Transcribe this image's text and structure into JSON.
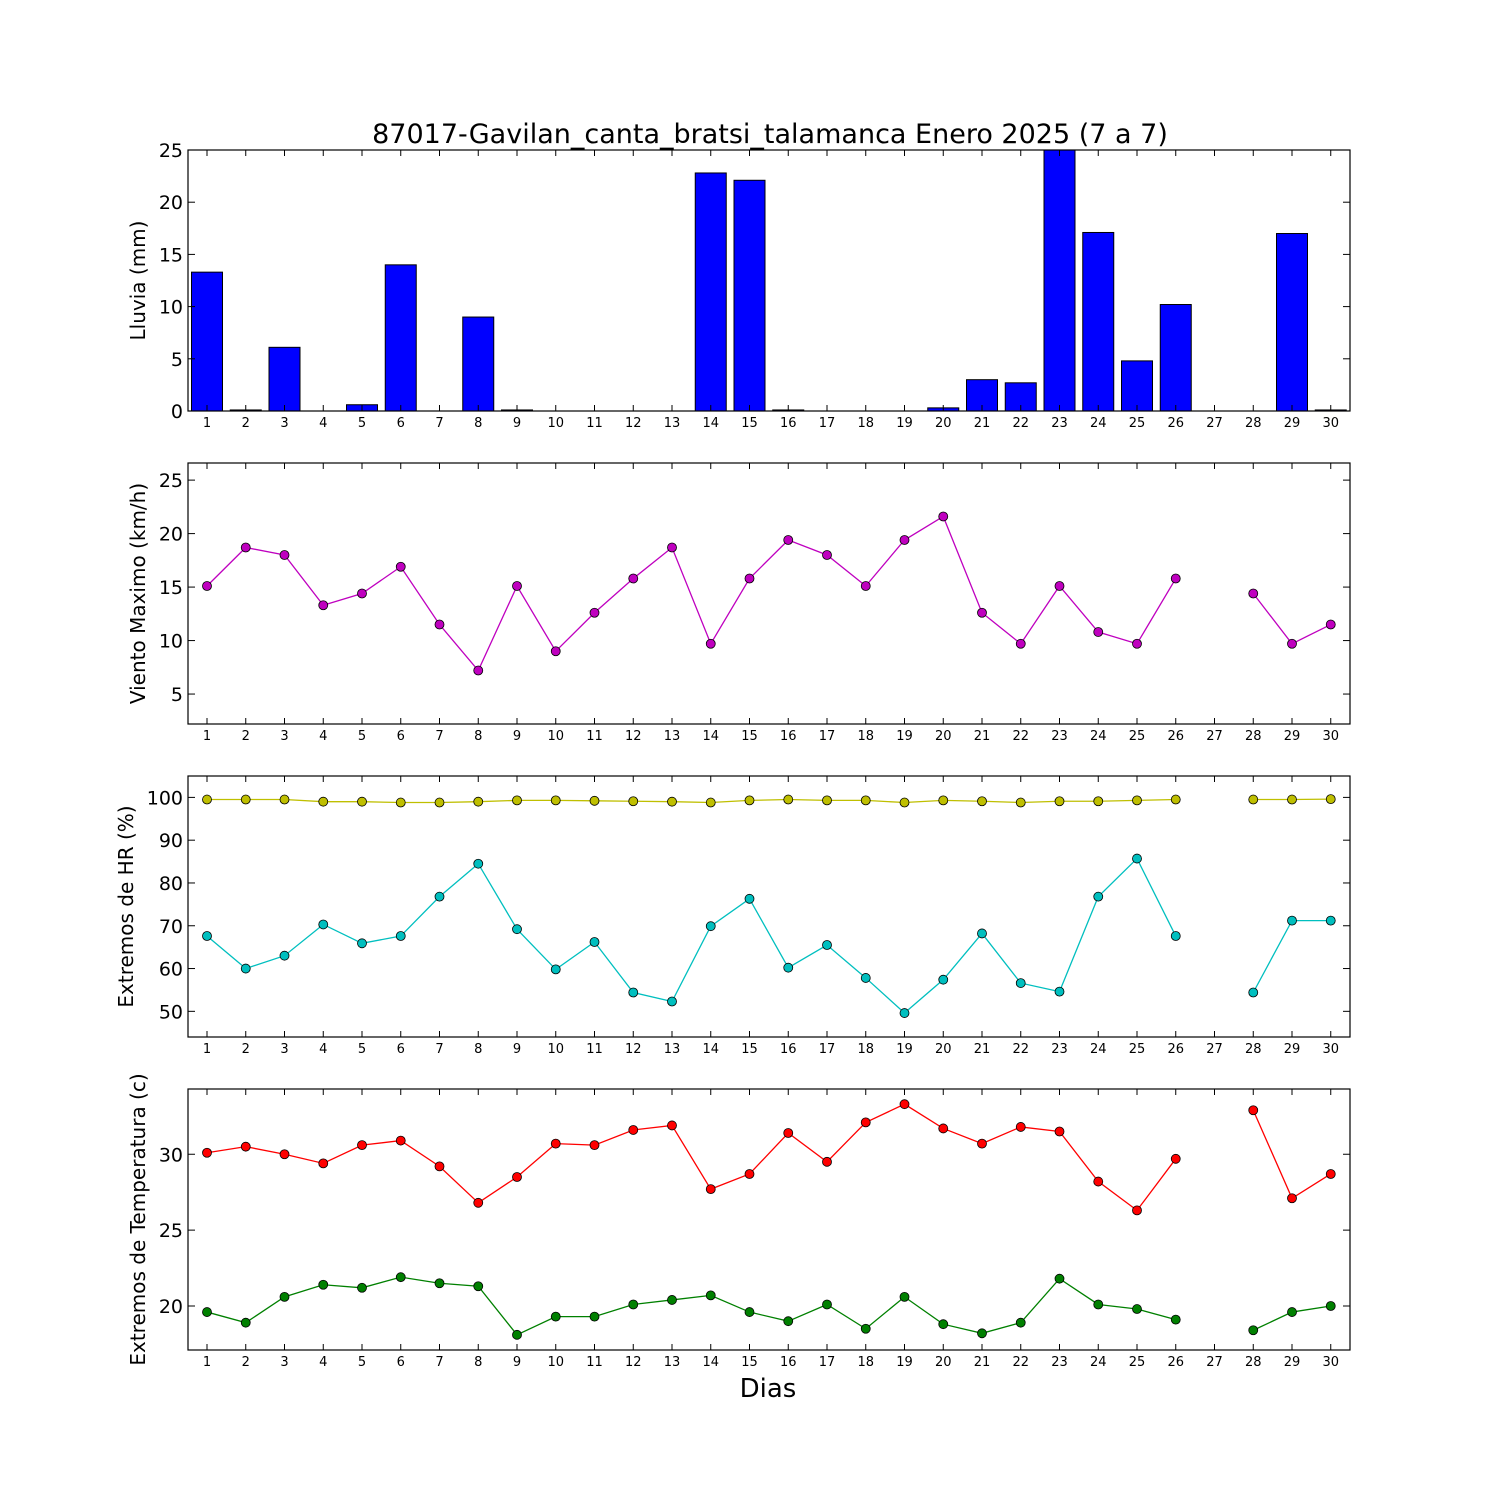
{
  "title": "87017-Gavilan_canta_bratsi_talamanca Enero 2025  (7 a 7)",
  "xlabel": "Dias",
  "colors": {
    "rain": "#0000ff",
    "wind": "#bf00bf",
    "hr_max": "#bfbf00",
    "hr_min": "#00bfbf",
    "temp_max": "#ff0000",
    "temp_min": "#008000"
  },
  "chart_data": [
    {
      "id": "rain",
      "type": "bar",
      "ylabel": "Lluvia (mm)",
      "ylim": [
        0,
        25
      ],
      "yticks": [
        0,
        5,
        10,
        15,
        20,
        25
      ],
      "categories": [
        "1",
        "2",
        "3",
        "4",
        "5",
        "6",
        "7",
        "8",
        "9",
        "10",
        "11",
        "12",
        "13",
        "14",
        "15",
        "16",
        "17",
        "18",
        "19",
        "20",
        "21",
        "22",
        "23",
        "24",
        "25",
        "26",
        "27",
        "28",
        "29",
        "30"
      ],
      "series": [
        {
          "color_key": "rain",
          "values": [
            13.3,
            0.1,
            6.1,
            0,
            0.6,
            14.0,
            0,
            9.0,
            0.1,
            0,
            0,
            0,
            0,
            22.8,
            22.1,
            0.1,
            0,
            0,
            0,
            0.3,
            3.0,
            2.7,
            25.0,
            17.1,
            4.8,
            10.2,
            0,
            0,
            17.0,
            0.1
          ]
        }
      ]
    },
    {
      "id": "wind",
      "type": "line",
      "ylabel": "Viento Maximo (km/h)",
      "ylim": [
        2.2,
        26.6
      ],
      "yticks": [
        5,
        10,
        15,
        20,
        25
      ],
      "categories": [
        "1",
        "2",
        "3",
        "4",
        "5",
        "6",
        "7",
        "8",
        "9",
        "10",
        "11",
        "12",
        "13",
        "14",
        "15",
        "16",
        "17",
        "18",
        "19",
        "20",
        "21",
        "22",
        "23",
        "24",
        "25",
        "26",
        "27",
        "28",
        "29",
        "30"
      ],
      "series": [
        {
          "color_key": "wind",
          "values": [
            15.1,
            18.7,
            18.0,
            13.3,
            14.4,
            16.9,
            11.5,
            7.2,
            15.1,
            9.0,
            12.6,
            15.8,
            18.7,
            9.7,
            15.8,
            19.4,
            18.0,
            15.1,
            19.4,
            21.6,
            12.6,
            9.7,
            15.1,
            10.8,
            9.7,
            15.8,
            null,
            14.4,
            9.7,
            11.5
          ]
        }
      ]
    },
    {
      "id": "hr",
      "type": "line",
      "ylabel": "Extremos de HR (%)",
      "ylim": [
        44,
        105
      ],
      "yticks": [
        50,
        60,
        70,
        80,
        90,
        100
      ],
      "categories": [
        "1",
        "2",
        "3",
        "4",
        "5",
        "6",
        "7",
        "8",
        "9",
        "10",
        "11",
        "12",
        "13",
        "14",
        "15",
        "16",
        "17",
        "18",
        "19",
        "20",
        "21",
        "22",
        "23",
        "24",
        "25",
        "26",
        "27",
        "28",
        "29",
        "30"
      ],
      "series": [
        {
          "color_key": "hr_max",
          "values": [
            99.5,
            99.5,
            99.5,
            99.0,
            99.0,
            98.8,
            98.8,
            99.0,
            99.3,
            99.3,
            99.2,
            99.1,
            99.0,
            98.8,
            99.3,
            99.5,
            99.3,
            99.3,
            98.8,
            99.3,
            99.1,
            98.8,
            99.1,
            99.1,
            99.3,
            99.5,
            null,
            99.5,
            99.5,
            99.6
          ]
        },
        {
          "color_key": "hr_min",
          "values": [
            67.6,
            60.0,
            63.0,
            70.3,
            65.9,
            67.6,
            76.8,
            84.5,
            69.2,
            59.8,
            66.2,
            54.4,
            52.3,
            69.9,
            76.3,
            60.2,
            65.5,
            57.8,
            49.6,
            57.4,
            68.2,
            56.6,
            54.6,
            76.8,
            85.7,
            67.6,
            null,
            54.4,
            71.2,
            71.2
          ]
        }
      ]
    },
    {
      "id": "temp",
      "type": "line",
      "ylabel": "Extremos de Temperatura (c)",
      "ylim": [
        17.1,
        34.3
      ],
      "yticks": [
        20,
        25,
        30
      ],
      "categories": [
        "1",
        "2",
        "3",
        "4",
        "5",
        "6",
        "7",
        "8",
        "9",
        "10",
        "11",
        "12",
        "13",
        "14",
        "15",
        "16",
        "17",
        "18",
        "19",
        "20",
        "21",
        "22",
        "23",
        "24",
        "25",
        "26",
        "27",
        "28",
        "29",
        "30"
      ],
      "series": [
        {
          "color_key": "temp_max",
          "values": [
            30.1,
            30.5,
            30.0,
            29.4,
            30.6,
            30.9,
            29.2,
            26.8,
            28.5,
            30.7,
            30.6,
            31.6,
            31.9,
            27.7,
            28.7,
            31.4,
            29.5,
            32.1,
            33.3,
            31.7,
            30.7,
            31.8,
            31.5,
            28.2,
            26.3,
            29.7,
            null,
            32.9,
            27.1,
            28.7
          ]
        },
        {
          "color_key": "temp_min",
          "values": [
            19.6,
            18.9,
            20.6,
            21.4,
            21.2,
            21.9,
            21.5,
            21.3,
            18.1,
            19.3,
            19.3,
            20.1,
            20.4,
            20.7,
            19.6,
            19.0,
            20.1,
            18.5,
            20.6,
            18.8,
            18.2,
            18.9,
            21.8,
            20.1,
            19.8,
            19.1,
            null,
            18.4,
            19.6,
            20.0
          ]
        }
      ]
    }
  ]
}
